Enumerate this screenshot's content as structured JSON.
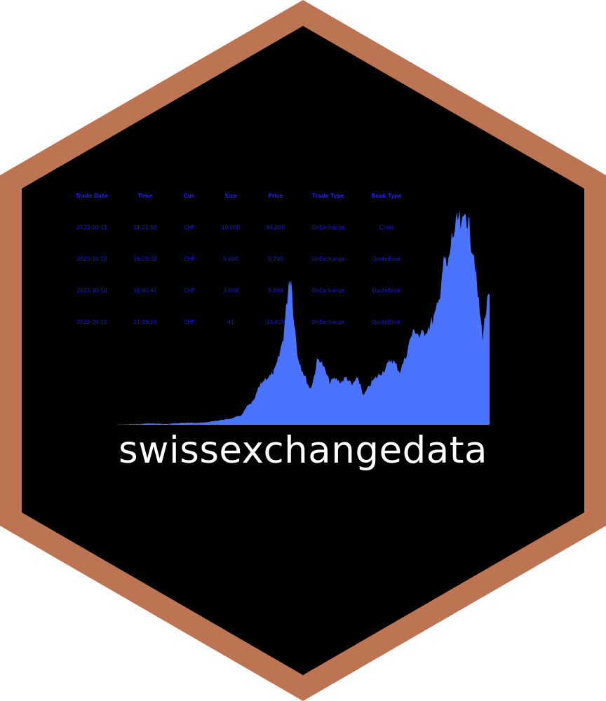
{
  "title": "swissexchangedata",
  "colors": {
    "border": "#bd7452",
    "background": "#000000",
    "chart_fill": "#4a74ff",
    "table_text": "#1a1ad8",
    "title_text": "#ffffff"
  },
  "table": {
    "headers": [
      "Trade Date",
      "Time",
      "Cur.",
      "Size",
      "Price",
      "Trade Type",
      "Book Type"
    ],
    "rows": [
      [
        "2023-10-11",
        "11:21:55",
        "CHF",
        "10 000",
        "84.000",
        "OnExchange",
        "Cross"
      ],
      [
        "2023-10-10",
        "16:20:30",
        "CHF",
        "5 000",
        "0.790",
        "OnExchange",
        "QuoteBook"
      ],
      [
        "2023-10-10",
        "16:40:41",
        "CHF",
        "3 000",
        "9.090",
        "OnExchange",
        "QuoteBook"
      ],
      [
        "2023-10-10",
        "11:05:10",
        "CHF",
        "41",
        "14.410",
        "OnExchange",
        "QuoteBook"
      ]
    ]
  }
}
